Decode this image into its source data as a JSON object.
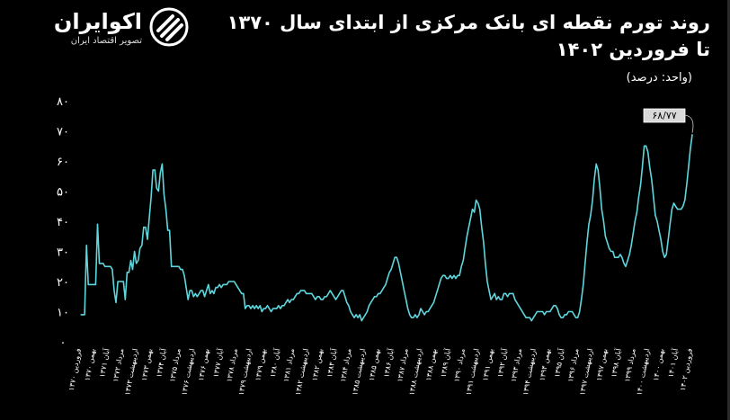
{
  "brand": {
    "name": "اکوایران",
    "tagline": "تصویر اقتصاد ایران"
  },
  "title_line1": "روند تورم نقطه ای بانک مرکزی از ابتدای سال ۱۳۷۰",
  "title_line2": "تا فروردین ۱۴۰۲",
  "unit_label": "(واحد: درصد)",
  "colors": {
    "background": "#000000",
    "line": "#5ed6dc",
    "text": "#ffffff"
  },
  "chart_data": {
    "type": "line",
    "title": "روند تورم نقطه ای بانک مرکزی از ابتدای سال ۱۳۷۰ تا فروردین ۱۴۰۲",
    "ylabel": "(واحد: درصد)",
    "ylim": [
      0,
      80
    ],
    "yticks": [
      0,
      10,
      20,
      30,
      40,
      50,
      60,
      70,
      80
    ],
    "ytick_labels": [
      "۰",
      "۱۰",
      "۲۰",
      "۳۰",
      "۴۰",
      "۵۰",
      "۶۰",
      "۷۰",
      "۸۰"
    ],
    "grid": false,
    "last_label": "۶۸/۷۷",
    "x_labels": [
      "فروردین ۱۳۷۰",
      "بهمن ۱۳۷۰",
      "آبان ۱۳۷۱",
      "مرداد ۱۳۷۲",
      "اردیبهشت ۱۳۷۳",
      "بهمن ۱۳۷۳",
      "آبان ۱۳۷۴",
      "مرداد ۱۳۷۵",
      "اردیبهشت ۱۳۷۶",
      "بهمن ۱۳۷۶",
      "آبان ۱۳۷۷",
      "مرداد ۱۳۷۸",
      "اردیبهشت ۱۳۷۹",
      "بهمن ۱۳۷۹",
      "آبان ۱۳۸۰",
      "مرداد ۱۳۸۱",
      "اردیبهشت ۱۳۸۲",
      "بهمن ۱۳۸۲",
      "آبان ۱۳۸۳",
      "مرداد ۱۳۸۴",
      "اردیبهشت ۱۳۸۵",
      "بهمن ۱۳۸۵",
      "آبان ۱۳۸۶",
      "مرداد ۱۳۸۷",
      "اردیبهشت ۱۳۸۸",
      "بهمن ۱۳۸۸",
      "آبان ۱۳۸۹",
      "مرداد ۱۳۹۰",
      "اردیبهشت ۱۳۹۱",
      "بهمن ۱۳۹۱",
      "آبان ۱۳۹۲",
      "مرداد ۱۳۹۳",
      "اردیبهشت ۱۳۹۴",
      "بهمن ۱۳۹۴",
      "آبان ۱۳۹۵",
      "مرداد ۱۳۹۶",
      "اردیبهشت ۱۳۹۷",
      "بهمن ۱۳۹۷",
      "آبان ۱۳۹۸",
      "مرداد ۱۳۹۹",
      "اردیبهشت ۱۴۰۰",
      "بهمن ۱۴۰۰",
      "آبان ۱۴۰۱",
      "فروردین ۱۴۰۲"
    ],
    "series": [
      {
        "values": [
          9,
          9,
          9,
          32,
          19,
          19,
          19,
          19,
          19,
          39,
          26,
          26,
          26,
          25,
          25,
          25,
          25,
          24,
          17,
          13,
          20,
          20,
          20,
          20,
          14,
          23,
          23,
          27,
          24,
          30,
          26,
          27,
          31,
          32,
          38,
          38,
          34,
          41,
          48,
          57,
          57,
          51,
          50,
          56,
          59,
          49,
          44,
          37,
          37,
          25,
          25,
          25,
          25,
          25,
          24,
          24,
          22,
          18,
          14,
          17,
          17,
          15,
          16,
          15,
          16,
          17,
          17,
          15,
          17,
          19,
          16,
          17,
          16,
          18,
          18,
          19,
          18,
          19,
          19,
          19,
          20,
          20,
          20,
          20,
          19,
          18,
          17,
          16,
          16,
          11,
          12,
          12,
          11,
          12,
          11,
          12,
          11,
          12,
          10,
          11,
          11,
          12,
          11,
          10,
          11,
          11,
          11,
          12,
          11,
          12,
          12,
          13,
          14,
          13,
          14,
          14,
          15,
          16,
          16,
          17,
          17,
          17,
          16,
          16,
          16,
          16,
          15,
          14,
          15,
          15,
          14,
          14,
          15,
          15,
          16,
          17,
          16,
          15,
          14,
          15,
          16,
          17,
          17,
          15,
          13,
          12,
          10,
          9,
          8,
          9,
          8,
          9,
          7,
          8,
          9,
          10,
          12,
          13,
          14,
          15,
          15,
          16,
          16,
          17,
          18,
          19,
          21,
          23,
          24,
          26,
          28,
          28,
          26,
          23,
          20,
          17,
          14,
          11,
          9,
          8,
          8,
          9,
          8,
          9,
          11,
          10,
          9,
          10,
          10,
          11,
          12,
          13,
          15,
          17,
          19,
          21,
          22,
          22,
          21,
          21,
          22,
          21,
          22,
          21,
          22,
          22,
          25,
          27,
          31,
          35,
          38,
          41,
          44,
          43,
          47,
          46,
          44,
          38,
          33,
          26,
          20,
          17,
          14,
          15,
          16,
          14,
          15,
          14,
          14,
          16,
          16,
          15,
          16,
          16,
          16,
          14,
          13,
          12,
          11,
          10,
          9,
          8,
          8,
          8,
          7,
          8,
          9,
          10,
          10,
          10,
          10,
          9,
          10,
          10,
          10,
          11,
          12,
          12,
          11,
          9,
          8,
          8,
          9,
          9,
          10,
          10,
          10,
          9,
          8,
          8,
          10,
          14,
          19,
          26,
          33,
          39,
          42,
          47,
          54,
          59,
          57,
          51,
          44,
          40,
          35,
          33,
          31,
          30,
          30,
          28,
          28,
          28,
          29,
          28,
          26,
          25,
          27,
          29,
          32,
          36,
          40,
          43,
          48,
          52,
          58,
          65,
          65,
          63,
          58,
          54,
          48,
          42,
          40,
          37,
          34,
          30,
          28,
          29,
          34,
          39,
          44,
          46,
          45,
          44,
          44,
          44,
          45,
          47,
          52,
          58,
          64,
          68.77
        ]
      }
    ]
  }
}
